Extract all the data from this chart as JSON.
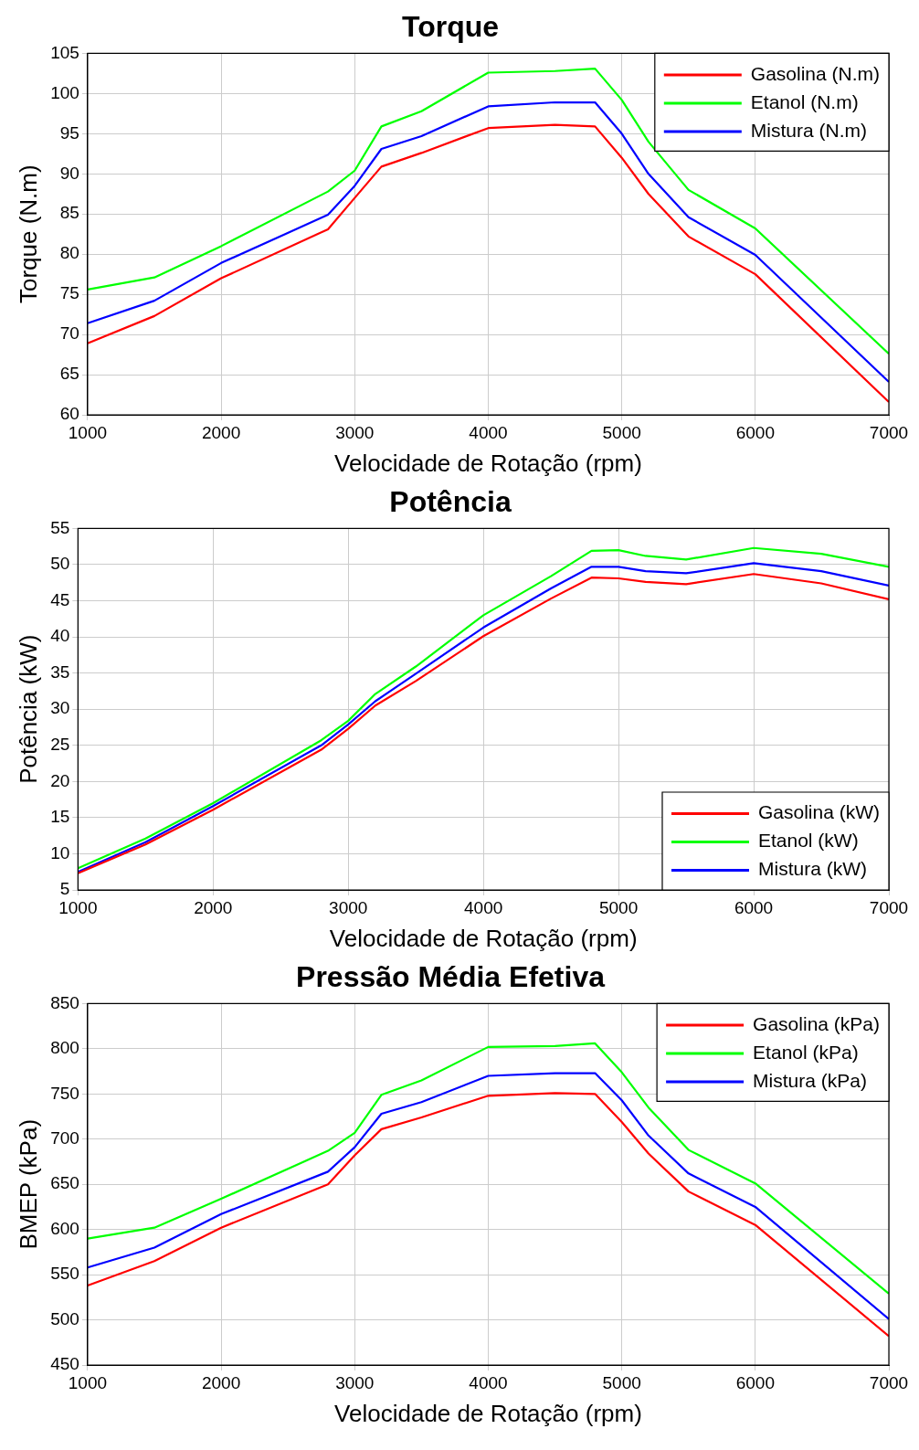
{
  "chart_data": [
    {
      "type": "line",
      "title": "Torque",
      "xlabel": "Velocidade de Rotação (rpm)",
      "ylabel": "Torque (N.m)",
      "x": [
        1000,
        1500,
        2000,
        2800,
        3000,
        3200,
        3500,
        4000,
        4500,
        4800,
        5000,
        5200,
        5500,
        6000,
        7000
      ],
      "series": [
        {
          "name": "Gasolina (N.m)",
          "color": "#ff0000",
          "values": [
            68.9,
            72.3,
            77,
            83.1,
            87,
            90.9,
            92.6,
            95.7,
            96.1,
            95.9,
            92,
            87.5,
            82.2,
            77.5,
            61.6
          ]
        },
        {
          "name": "Etanol (N.m)",
          "color": "#00ff00",
          "values": [
            75.6,
            77.1,
            81,
            87.8,
            90.4,
            95.9,
            97.8,
            102.6,
            102.8,
            103.1,
            99.2,
            94,
            88,
            83.2,
            67.6
          ]
        },
        {
          "name": "Mistura (N.m)",
          "color": "#0000ff",
          "values": [
            71.4,
            74.2,
            78.9,
            84.9,
            88.5,
            93.1,
            94.7,
            98.4,
            98.9,
            98.9,
            95,
            90,
            84.6,
            79.9,
            64.1
          ]
        }
      ],
      "xlim": [
        1000,
        7000
      ],
      "xticks": [
        1000,
        2000,
        3000,
        4000,
        5000,
        6000,
        7000
      ],
      "ylim": [
        60,
        105
      ],
      "yticks": [
        60,
        65,
        70,
        75,
        80,
        85,
        90,
        95,
        100,
        105
      ],
      "grid": true,
      "legend": "top right",
      "marker": "none",
      "line_style": "solid"
    },
    {
      "type": "line",
      "title": "Potência",
      "xlabel": "Velocidade de Rotação (rpm)",
      "ylabel": "Potência (kW)",
      "x": [
        1000,
        1500,
        2000,
        2800,
        3000,
        3200,
        3500,
        4000,
        4500,
        4800,
        5000,
        5200,
        5500,
        6000,
        6500,
        7000
      ],
      "series": [
        {
          "name": "Gasolina (kW)",
          "color": "#ff0000",
          "values": [
            7.3,
            11.3,
            16.1,
            24.4,
            27.3,
            30.5,
            33.9,
            40.1,
            45.3,
            48.2,
            48.1,
            47.6,
            47.3,
            48.7,
            47.4,
            45.2
          ]
        },
        {
          "name": "Etanol (kW)",
          "color": "#00ff00",
          "values": [
            8.0,
            12.1,
            17.0,
            25.7,
            28.4,
            32.1,
            35.9,
            43.0,
            48.4,
            51.9,
            52.0,
            51.2,
            50.7,
            52.3,
            51.5,
            49.7
          ]
        },
        {
          "name": "Mistura (kW)",
          "color": "#0000ff",
          "values": [
            7.5,
            11.6,
            16.6,
            25.0,
            27.9,
            31.1,
            34.9,
            41.3,
            46.7,
            49.7,
            49.7,
            49.1,
            48.8,
            50.2,
            49.1,
            47.1
          ]
        }
      ],
      "xlim": [
        1000,
        7000
      ],
      "xticks": [
        1000,
        2000,
        3000,
        4000,
        5000,
        6000,
        7000
      ],
      "ylim": [
        5,
        55
      ],
      "yticks": [
        5,
        10,
        15,
        20,
        25,
        30,
        35,
        40,
        45,
        50,
        55
      ],
      "grid": true,
      "legend": "bottom right",
      "marker": "none",
      "line_style": "solid"
    },
    {
      "type": "line",
      "title": "Pressão Média Efetiva",
      "xlabel": "Velocidade de Rotação (rpm)",
      "ylabel": "BMEP (kPa)",
      "x": [
        1000,
        1500,
        2000,
        2800,
        3000,
        3200,
        3500,
        4000,
        4500,
        4800,
        5000,
        5200,
        5500,
        6000,
        7000
      ],
      "series": [
        {
          "name": "Gasolina (kPa)",
          "color": "#ff0000",
          "values": [
            538,
            565,
            602,
            650,
            682,
            711,
            724,
            748,
            751,
            750,
            719,
            684,
            642,
            605,
            482
          ]
        },
        {
          "name": "Etanol (kPa)",
          "color": "#00ff00",
          "values": [
            590,
            602,
            634,
            687,
            707,
            749,
            765,
            802,
            803,
            806,
            774,
            735,
            688,
            651,
            529
          ]
        },
        {
          "name": "Mistura (kPa)",
          "color": "#0000ff",
          "values": [
            558,
            580,
            617,
            664,
            691,
            728,
            741,
            770,
            773,
            773,
            743,
            704,
            662,
            625,
            501
          ]
        }
      ],
      "xlim": [
        1000,
        7000
      ],
      "xticks": [
        1000,
        2000,
        3000,
        4000,
        5000,
        6000,
        7000
      ],
      "ylim": [
        450,
        850
      ],
      "yticks": [
        450,
        500,
        550,
        600,
        650,
        700,
        750,
        800,
        850
      ],
      "grid": true,
      "legend": "top right",
      "marker": "none",
      "line_style": "solid"
    }
  ]
}
